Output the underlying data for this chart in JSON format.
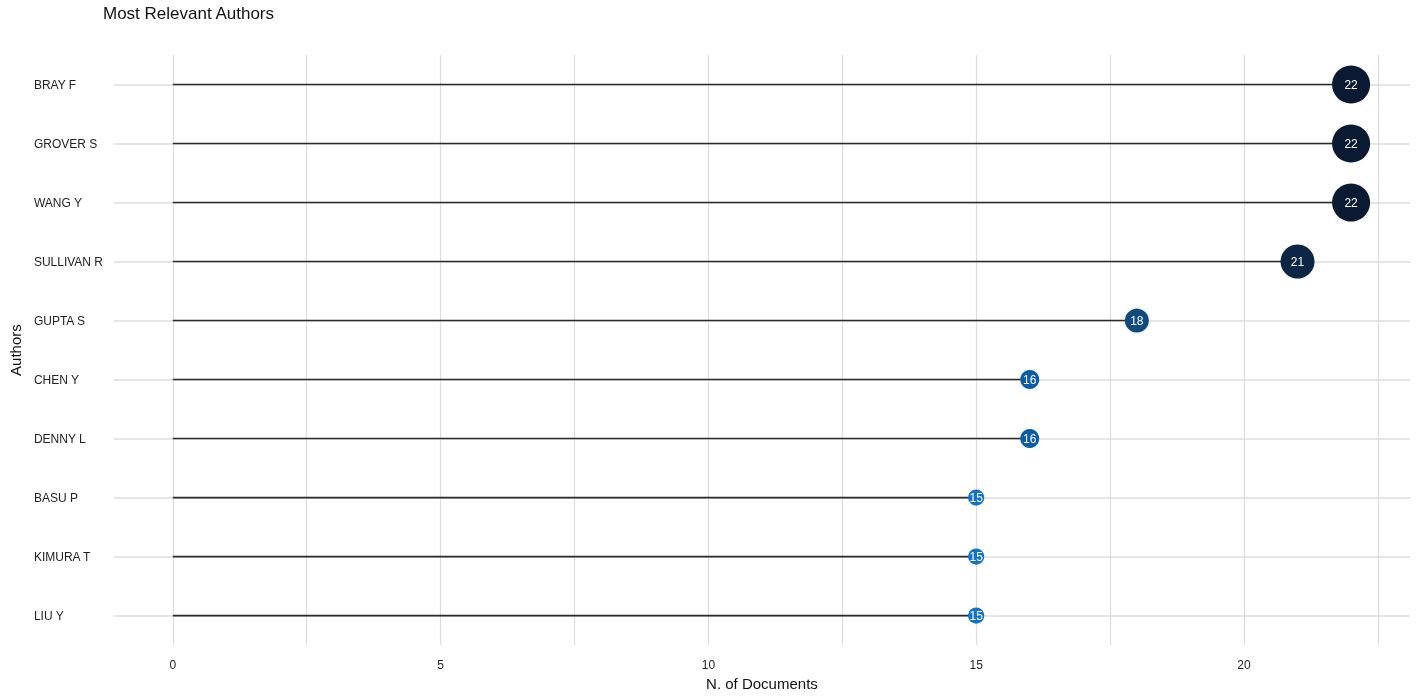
{
  "chart_data": {
    "type": "lollipop",
    "orientation": "horizontal",
    "title": "Most Relevant Authors",
    "xlabel": "N. of Documents",
    "ylabel": "Authors",
    "categories": [
      "BRAY F",
      "GROVER S",
      "WANG Y",
      "SULLIVAN R",
      "GUPTA S",
      "CHEN Y",
      "DENNY L",
      "BASU P",
      "KIMURA T",
      "LIU Y"
    ],
    "values": [
      22,
      22,
      22,
      21,
      18,
      16,
      16,
      15,
      15,
      15
    ],
    "sizes": [
      1,
      1,
      1,
      0.8,
      0.4,
      0.25,
      0.25,
      0.18,
      0.18,
      0.18
    ],
    "colors": [
      "#0a1a33",
      "#0a1a33",
      "#0a1a33",
      "#0d2646",
      "#0f4a80",
      "#0b5ca8",
      "#0b5ca8",
      "#1273cc",
      "#1273cc",
      "#1273cc"
    ],
    "xlim": [
      -1.1,
      23.1
    ],
    "xticks": [
      0,
      {
        "value": 2.5,
        "label": null
      },
      5,
      {
        "value": 7.5,
        "label": null
      },
      10,
      {
        "value": 12.5,
        "label": null
      },
      15,
      {
        "value": 17.5,
        "label": null
      },
      20,
      {
        "value": 22.5,
        "label": null
      }
    ],
    "grid": true,
    "marker": "circle",
    "data_labels": true
  }
}
